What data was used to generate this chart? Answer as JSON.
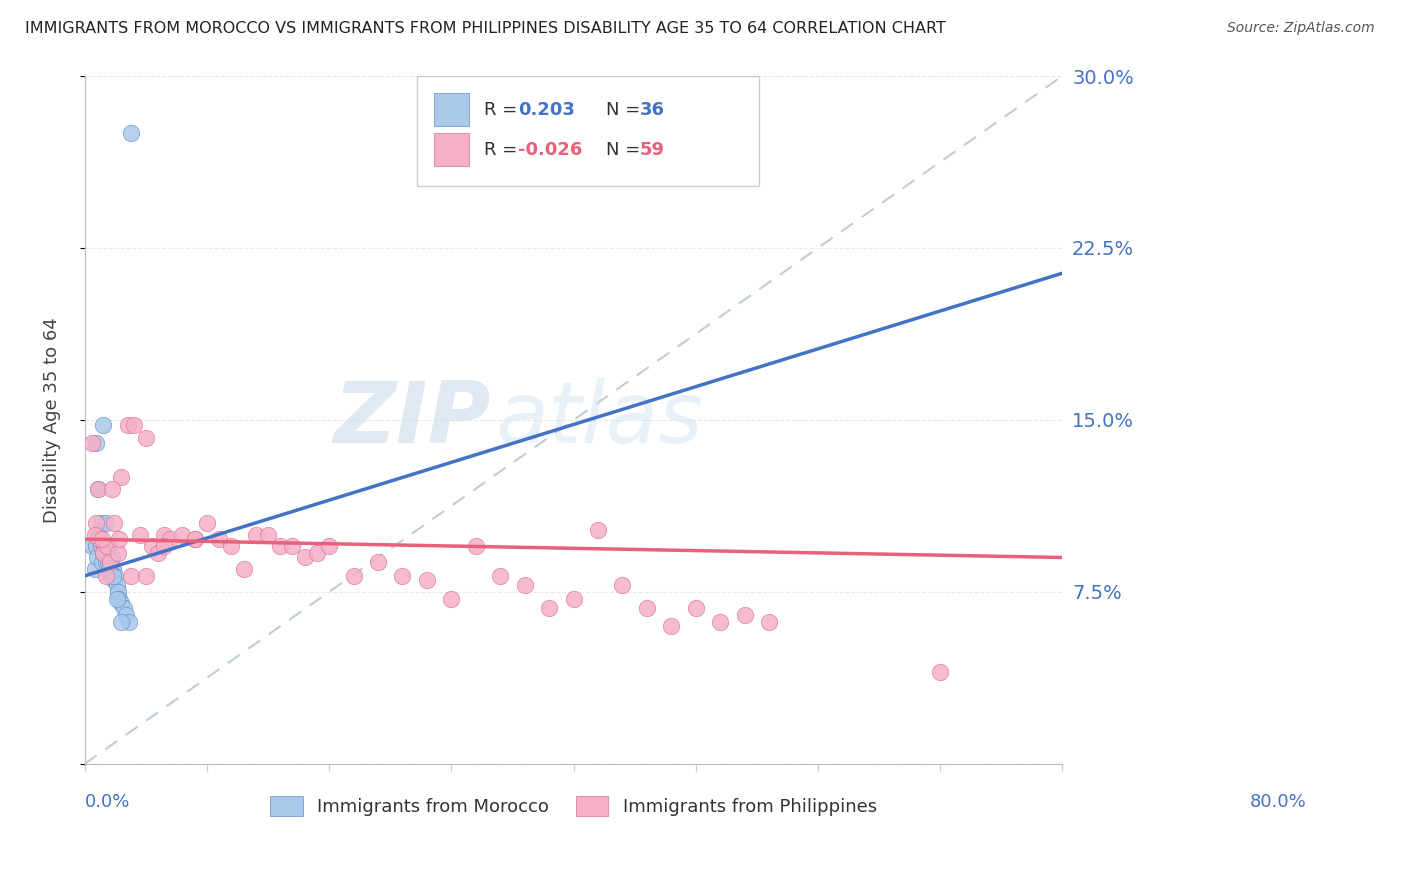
{
  "title": "IMMIGRANTS FROM MOROCCO VS IMMIGRANTS FROM PHILIPPINES DISABILITY AGE 35 TO 64 CORRELATION CHART",
  "source": "Source: ZipAtlas.com",
  "ylabel": "Disability Age 35 to 64",
  "xlim": [
    0.0,
    0.8
  ],
  "ylim": [
    0.0,
    0.3
  ],
  "yticks": [
    0.0,
    0.075,
    0.15,
    0.225,
    0.3
  ],
  "ytick_labels": [
    "",
    "7.5%",
    "15.0%",
    "22.5%",
    "30.0%"
  ],
  "morocco_R": 0.203,
  "morocco_N": 36,
  "philippines_R": -0.026,
  "philippines_N": 59,
  "morocco_color": "#aac8ea",
  "philippines_color": "#f5b0c8",
  "morocco_line_color": "#4472c4",
  "philippines_line_color": "#e8607a",
  "morocco_edge_color": "#6090c8",
  "philippines_edge_color": "#d87090",
  "legend_label_morocco": "Immigrants from Morocco",
  "legend_label_philippines": "Immigrants from Philippines",
  "watermark_zip": "ZIP",
  "watermark_atlas": "atlas",
  "background_color": "#ffffff",
  "grid_color": "#e8e8e8",
  "morocco_x": [
    0.006,
    0.008,
    0.009,
    0.01,
    0.011,
    0.012,
    0.013,
    0.014,
    0.015,
    0.016,
    0.017,
    0.018,
    0.019,
    0.02,
    0.021,
    0.022,
    0.023,
    0.024,
    0.025,
    0.026,
    0.027,
    0.028,
    0.03,
    0.032,
    0.034,
    0.036,
    0.009,
    0.011,
    0.013,
    0.015,
    0.017,
    0.02,
    0.023,
    0.026,
    0.03,
    0.038
  ],
  "morocco_y": [
    0.095,
    0.085,
    0.095,
    0.09,
    0.1,
    0.098,
    0.095,
    0.088,
    0.092,
    0.095,
    0.088,
    0.092,
    0.088,
    0.085,
    0.082,
    0.09,
    0.085,
    0.08,
    0.082,
    0.078,
    0.075,
    0.072,
    0.07,
    0.068,
    0.065,
    0.062,
    0.14,
    0.12,
    0.105,
    0.148,
    0.105,
    0.095,
    0.082,
    0.072,
    0.062,
    0.275
  ],
  "philippines_x": [
    0.006,
    0.009,
    0.012,
    0.015,
    0.018,
    0.021,
    0.024,
    0.027,
    0.03,
    0.035,
    0.04,
    0.045,
    0.05,
    0.055,
    0.06,
    0.065,
    0.07,
    0.08,
    0.09,
    0.1,
    0.11,
    0.12,
    0.13,
    0.14,
    0.15,
    0.16,
    0.17,
    0.18,
    0.19,
    0.2,
    0.22,
    0.24,
    0.26,
    0.28,
    0.3,
    0.32,
    0.34,
    0.36,
    0.38,
    0.4,
    0.42,
    0.44,
    0.46,
    0.48,
    0.5,
    0.52,
    0.54,
    0.56,
    0.008,
    0.011,
    0.014,
    0.017,
    0.022,
    0.028,
    0.038,
    0.05,
    0.065,
    0.09,
    0.7
  ],
  "philippines_y": [
    0.14,
    0.105,
    0.098,
    0.092,
    0.095,
    0.088,
    0.105,
    0.092,
    0.125,
    0.148,
    0.148,
    0.1,
    0.142,
    0.095,
    0.092,
    0.1,
    0.098,
    0.1,
    0.098,
    0.105,
    0.098,
    0.095,
    0.085,
    0.1,
    0.1,
    0.095,
    0.095,
    0.09,
    0.092,
    0.095,
    0.082,
    0.088,
    0.082,
    0.08,
    0.072,
    0.095,
    0.082,
    0.078,
    0.068,
    0.072,
    0.102,
    0.078,
    0.068,
    0.06,
    0.068,
    0.062,
    0.065,
    0.062,
    0.1,
    0.12,
    0.098,
    0.082,
    0.12,
    0.098,
    0.082,
    0.082,
    0.095,
    0.098,
    0.04
  ],
  "morocco_trend_x": [
    0.0,
    0.4
  ],
  "morocco_trend_y": [
    0.082,
    0.148
  ],
  "philippines_trend_x": [
    0.0,
    0.8
  ],
  "philippines_trend_y": [
    0.098,
    0.09
  ]
}
